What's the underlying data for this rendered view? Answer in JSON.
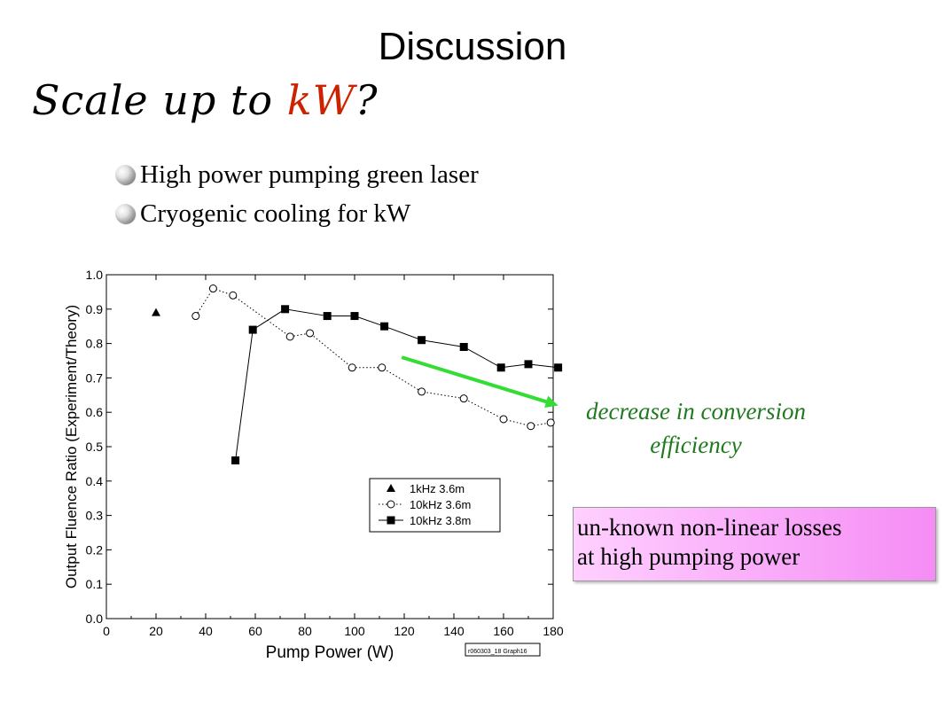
{
  "slide": {
    "title": "Discussion",
    "subtitle_prefix": "Scale up to ",
    "subtitle_accent": "kW",
    "subtitle_suffix": "?",
    "accent_color": "#cc2200",
    "bullets": [
      "High power pumping green laser",
      "Cryogenic cooling for kW"
    ],
    "bullet_icon": "sphere-bullet-icon",
    "annotation_line1": "decrease in conversion",
    "annotation_line2": "efficiency",
    "annotation_color": "#1f7a1f",
    "callout_line1": "un-known non-linear losses",
    "callout_line2": "at high pumping power"
  },
  "chart_data": {
    "type": "line",
    "xlabel": "Pump Power (W)",
    "ylabel": "Output Fluence Ratio (Experiment/Theory)",
    "xlim": [
      0,
      180
    ],
    "ylim": [
      0,
      1.0
    ],
    "xticks": [
      "0",
      "20",
      "40",
      "60",
      "80",
      "100",
      "120",
      "140",
      "160",
      "180"
    ],
    "yticks": [
      "0.0",
      "0.1",
      "0.2",
      "0.3",
      "0.4",
      "0.5",
      "0.6",
      "0.7",
      "0.8",
      "0.9",
      "1.0"
    ],
    "legend_position": "center-right",
    "graph_tag": "r060303_18 Graph16",
    "series": [
      {
        "name": "1kHz 3.6m",
        "marker": "triangle",
        "line": "none",
        "x": [
          20
        ],
        "y": [
          0.89
        ]
      },
      {
        "name": "10kHz 3.6m",
        "marker": "open-circle",
        "line": "dotted",
        "x": [
          36,
          43,
          51,
          74,
          82,
          99,
          111,
          127,
          144,
          160,
          171,
          179
        ],
        "y": [
          0.88,
          0.96,
          0.94,
          0.82,
          0.83,
          0.73,
          0.73,
          0.66,
          0.64,
          0.58,
          0.56,
          0.57
        ]
      },
      {
        "name": "10kHz 3.8m",
        "marker": "filled-square",
        "line": "solid",
        "x": [
          52,
          59,
          72,
          89,
          100,
          112,
          127,
          144,
          159,
          170,
          182
        ],
        "y": [
          0.46,
          0.84,
          0.9,
          0.88,
          0.88,
          0.85,
          0.81,
          0.79,
          0.73,
          0.74,
          0.73
        ]
      }
    ],
    "trend_arrow": {
      "color": "#33dd33",
      "from": [
        119,
        0.76
      ],
      "to": [
        182,
        0.62
      ]
    }
  }
}
